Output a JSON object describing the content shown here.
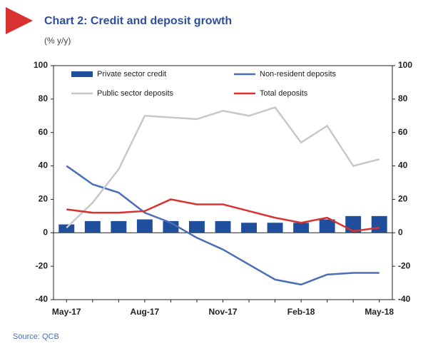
{
  "chart_data": {
    "type": "bar_line",
    "title": "Chart 2: Credit and deposit growth",
    "subtitle": "(% y/y)",
    "source": "Source: QCB",
    "categories": [
      "May-17",
      null,
      null,
      "Aug-17",
      null,
      null,
      "Nov-17",
      null,
      null,
      "Feb-18",
      null,
      null,
      "May-18"
    ],
    "series": [
      {
        "name": "Private sector credit",
        "kind": "bar",
        "color": "#1f4e9c",
        "values": [
          5,
          7,
          7,
          8,
          7,
          7,
          7,
          6,
          6,
          6,
          8,
          10,
          10
        ]
      },
      {
        "name": "Non-resident deposits",
        "kind": "line",
        "color": "#4a6fb5",
        "values": [
          40,
          29,
          24,
          12,
          6,
          -3,
          -10,
          -19,
          -28,
          -31,
          -25,
          -24,
          -24
        ]
      },
      {
        "name": "Public sector deposits",
        "kind": "line",
        "color": "#c8c8c8",
        "values": [
          3,
          18,
          38,
          70,
          69,
          68,
          73,
          70,
          75,
          54,
          64,
          40,
          44
        ]
      },
      {
        "name": "Total deposits",
        "kind": "line",
        "color": "#d9312f",
        "values": [
          14,
          12,
          12,
          13,
          20,
          17,
          17,
          13,
          9,
          6,
          9,
          1,
          3
        ]
      }
    ],
    "ylim": [
      -40,
      100
    ],
    "yticks": [
      -40,
      -20,
      0,
      20,
      40,
      60,
      80,
      100
    ],
    "y2lim": [
      -40,
      100
    ],
    "y2ticks": [
      -40,
      -20,
      0,
      20,
      40,
      60,
      80,
      100
    ]
  }
}
